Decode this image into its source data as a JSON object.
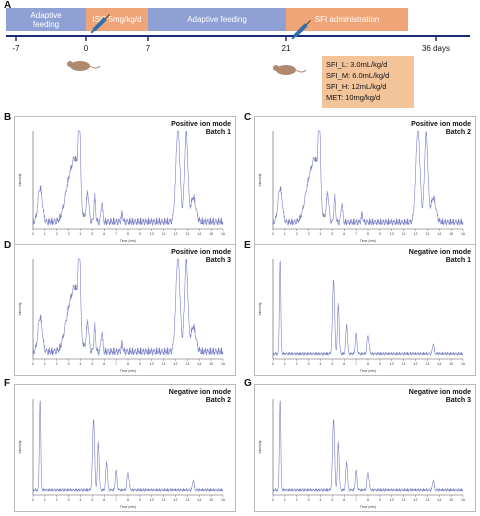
{
  "panels_labels": {
    "A": "A",
    "B": "B",
    "C": "C",
    "D": "D",
    "E": "E",
    "F": "F",
    "G": "G"
  },
  "timeline": {
    "segments": [
      {
        "label": "Adaptive\nfeeding",
        "color": "#8fa1d4"
      },
      {
        "label": "ISO 5mg/kg/d",
        "color": "#f0a578"
      },
      {
        "label": "Adaptive feeding",
        "color": "#8fa1d4"
      },
      {
        "label": "SFI administration",
        "color": "#f0a578"
      }
    ],
    "ticks": [
      "-7",
      "0",
      "7",
      "21",
      "36 days"
    ],
    "legend": [
      "SFI_L:  3.0mL/kg/d",
      "SFI_M:  6.0mL/kg/d",
      "SFI_H:  12mL/kg/d",
      "MET:  10mg/kg/d"
    ]
  },
  "chromatograms": [
    {
      "id": "B",
      "mode": "Positive ion mode",
      "batch": "Batch 1"
    },
    {
      "id": "C",
      "mode": "Positive ion mode",
      "batch": "Batch 2"
    },
    {
      "id": "D",
      "mode": "Positive ion mode",
      "batch": "Batch 3"
    },
    {
      "id": "E",
      "mode": "Negative ion mode",
      "batch": "Batch 1"
    },
    {
      "id": "F",
      "mode": "Negative ion mode",
      "batch": "Batch 2"
    },
    {
      "id": "G",
      "mode": "Negative ion mode",
      "batch": "Batch 3"
    }
  ],
  "axis": {
    "xlabel": "Time (min)",
    "ylabel": "Intensity",
    "xticks": [
      "0",
      "1",
      "2",
      "3",
      "4",
      "5",
      "6",
      "7",
      "8",
      "9",
      "10",
      "11",
      "12",
      "13",
      "14",
      "15",
      "16"
    ]
  },
  "colors": {
    "trace": "#7a7fc4",
    "axis": "#555"
  }
}
